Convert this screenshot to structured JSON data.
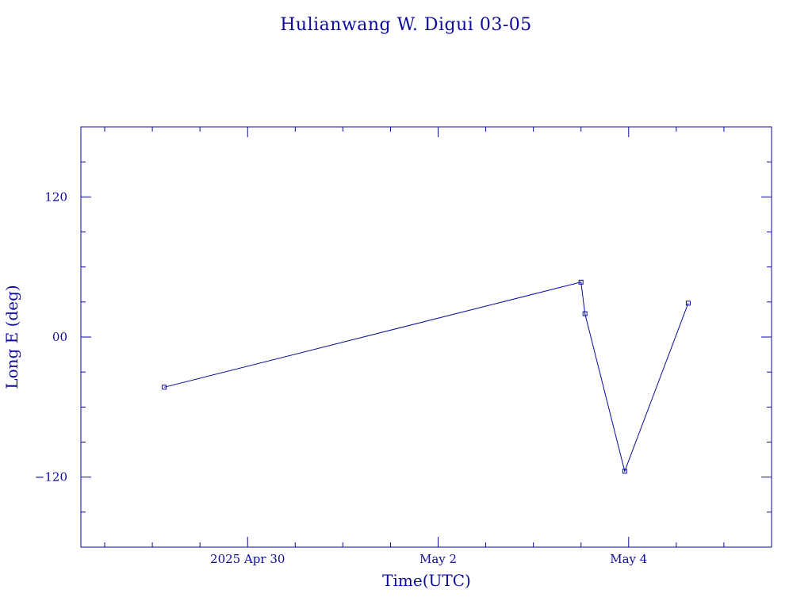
{
  "chart_data": {
    "type": "line",
    "title": "Hulianwang W. Digui 03-05",
    "xlabel": "Time(UTC)",
    "ylabel": "Long E (deg)",
    "color": "#0a0a9c",
    "grid": false,
    "x_axis": {
      "range": [
        "2025-04-28 06:00",
        "2025-05-05 12:00"
      ],
      "tick_labels": [
        {
          "date": "2025-04-30 00:00",
          "label": "2025 Apr 30"
        },
        {
          "date": "2025-05-02 00:00",
          "label": "May  2"
        },
        {
          "date": "2025-05-04 00:00",
          "label": "May  4"
        }
      ],
      "minor_ticks": [
        "2025-04-28 12:00",
        "2025-04-29 00:00",
        "2025-04-29 12:00",
        "2025-04-30 12:00",
        "2025-05-01 00:00",
        "2025-05-01 12:00",
        "2025-05-02 12:00",
        "2025-05-03 00:00",
        "2025-05-03 12:00",
        "2025-05-04 12:00",
        "2025-05-05 00:00"
      ]
    },
    "y_axis": {
      "range": [
        -180,
        180
      ],
      "tick_labels": [
        {
          "value": 120,
          "label": "120"
        },
        {
          "value": 0,
          "label": "00"
        },
        {
          "value": -120,
          "label": "−120"
        }
      ],
      "minor_ticks": [
        -150,
        -90,
        -60,
        -30,
        30,
        60,
        90,
        150
      ]
    },
    "series": [
      {
        "points": [
          {
            "x": "2025-04-29 03:00",
            "y": -43
          },
          {
            "x": "2025-05-03 12:00",
            "y": 47
          },
          {
            "x": "2025-05-03 13:00",
            "y": 20
          },
          {
            "x": "2025-05-03 23:00",
            "y": -115
          },
          {
            "x": "2025-05-04 15:00",
            "y": 29
          }
        ]
      }
    ]
  }
}
